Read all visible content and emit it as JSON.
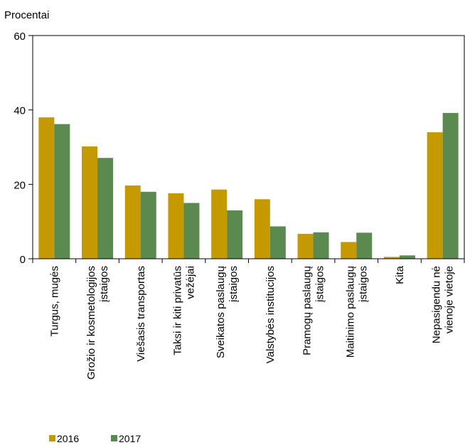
{
  "chart_data": {
    "type": "bar",
    "ylabel": "Procentai",
    "ylim": [
      0,
      60
    ],
    "yticks": [
      0,
      20,
      40,
      60
    ],
    "grid": false,
    "legend_position": "bottom-left",
    "categories": [
      [
        "Turgus, mugės"
      ],
      [
        "Grožio ir kosmetologijos",
        "įstaigos"
      ],
      [
        "Viešasis transportas"
      ],
      [
        "Taksi ir kiti privatūs",
        "vežėjai"
      ],
      [
        "Sveikatos paslaugų",
        "įstaigos"
      ],
      [
        "Valstybės institucijos"
      ],
      [
        "Pramogų paslaugų",
        "įstaigos"
      ],
      [
        "Maitinimo paslaugų",
        "įstaigos"
      ],
      [
        "Kita"
      ],
      [
        "Nepasigendu nė",
        "vienoje vietoje"
      ]
    ],
    "series": [
      {
        "name": "2016",
        "color": "#c49a00",
        "values": [
          38.0,
          30.2,
          19.7,
          17.6,
          18.6,
          16.0,
          6.7,
          4.5,
          0.5,
          34.0
        ]
      },
      {
        "name": "2017",
        "color": "#5a8a50",
        "values": [
          36.2,
          27.1,
          18.0,
          15.0,
          13.0,
          8.7,
          7.1,
          7.0,
          0.9,
          39.2
        ]
      }
    ]
  }
}
